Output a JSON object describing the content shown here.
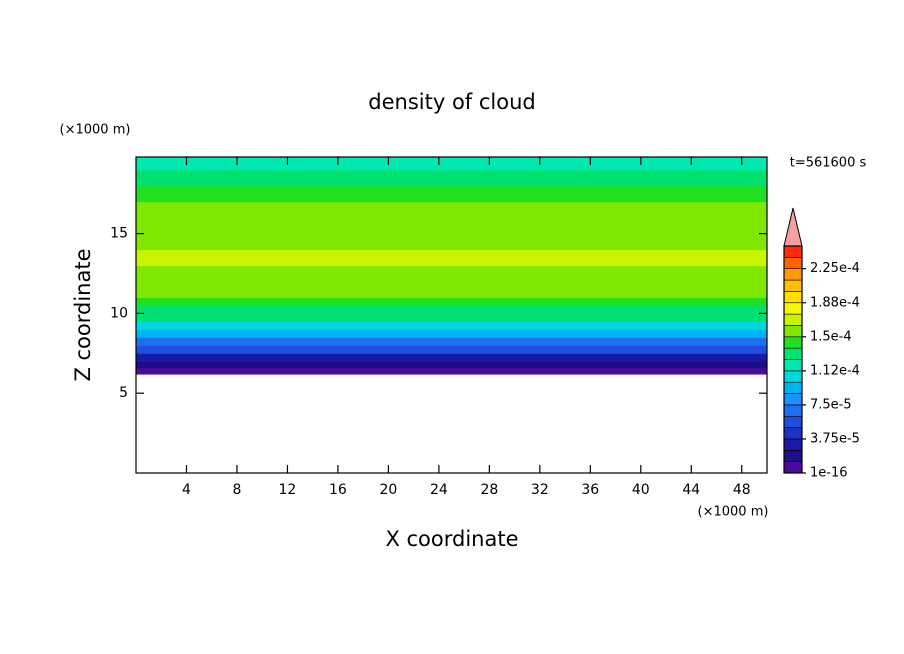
{
  "chart_data": {
    "type": "contour",
    "title": "density of cloud",
    "time_label": "t=561600 s",
    "xlabel": "X coordinate",
    "ylabel": "Z coordinate",
    "x_unit": "(×1000 m)",
    "y_unit": "(×1000 m)",
    "xlim": [
      0,
      50
    ],
    "ylim": [
      0,
      19.8
    ],
    "xticks": [
      4,
      8,
      12,
      16,
      20,
      24,
      28,
      32,
      36,
      40,
      44,
      48
    ],
    "yticks": [
      5,
      10,
      15
    ],
    "z_edges": [
      6.2,
      6.6,
      7.0,
      7.5,
      8.0,
      8.5,
      9.0,
      9.5,
      10.0,
      10.5,
      11.0,
      11.5,
      12.0,
      13.0,
      14.0,
      15.0,
      16.0,
      17.0,
      18.0,
      19.0,
      19.8
    ],
    "values": [
      5e-06,
      2e-05,
      3.5e-05,
      5e-05,
      7e-05,
      9e-05,
      0.000105,
      0.000125,
      0.00013,
      0.00014,
      0.00015,
      0.000155,
      0.00016,
      0.000165,
      0.000162,
      0.000158,
      0.00015,
      0.000142,
      0.00013,
      0.00012
    ],
    "levels": [
      0,
      1.25e-05,
      2.5e-05,
      3.75e-05,
      5e-05,
      6.25e-05,
      7.5e-05,
      8.75e-05,
      0.0001,
      0.0001125,
      0.000125,
      0.0001375,
      0.00015,
      0.0001625,
      0.000175,
      0.0001875,
      0.0002,
      0.0002125,
      0.000225,
      0.0002375,
      0.00025
    ],
    "colors": [
      "#4b0a9a",
      "#1c0f88",
      "#1a1aa8",
      "#1f30c8",
      "#1f4fe0",
      "#1f70f0",
      "#1e90ff",
      "#00b4f0",
      "#00d8e0",
      "#00e8b0",
      "#00e070",
      "#20e020",
      "#80e800",
      "#c8f400",
      "#f4f800",
      "#ffe000",
      "#ffc000",
      "#ff9a00",
      "#ff6400",
      "#ff2a10"
    ],
    "extend_color": "#f4a0a0",
    "colorbar_ticks": [
      {
        "value": 0,
        "label": "1e-16"
      },
      {
        "value": 3.75e-05,
        "label": "3.75e-5"
      },
      {
        "value": 7.5e-05,
        "label": "7.5e-5"
      },
      {
        "value": 0.0001125,
        "label": "1.12e-4"
      },
      {
        "value": 0.00015,
        "label": "1.5e-4"
      },
      {
        "value": 0.0001875,
        "label": "1.88e-4"
      },
      {
        "value": 0.000225,
        "label": "2.25e-4"
      }
    ]
  }
}
